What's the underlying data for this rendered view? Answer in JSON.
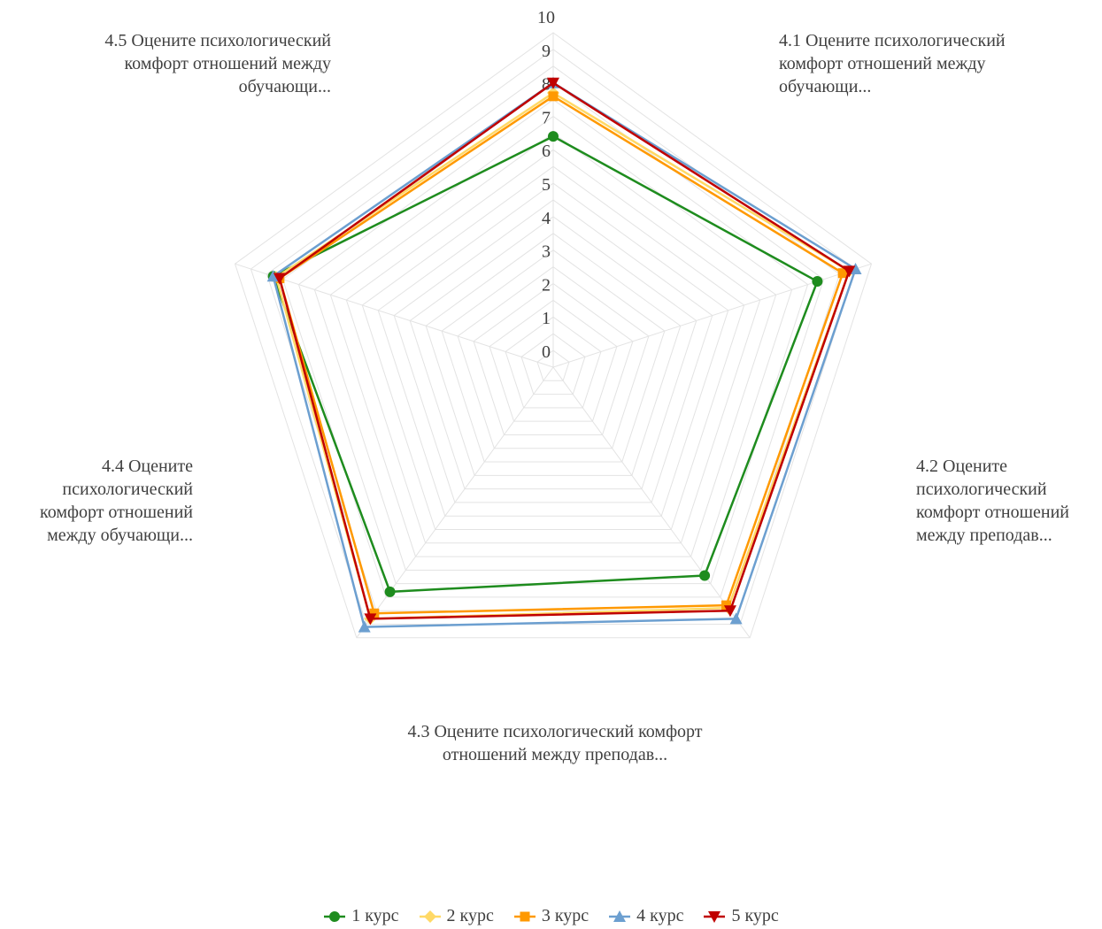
{
  "chart_data": {
    "type": "radar",
    "categories": [
      "4.1 Оцените психологический комфорт отношений между обучающи...",
      "4.2 Оцените психологический комфорт отношений между преподав...",
      "4.3 Оцените психологический комфорт отношений между преподав...",
      "4.4 Оцените психологический комфорт отношений между обучающи...",
      "4.5 Оцените психологический комфорт отношений между обучающи..."
    ],
    "category_lines": [
      [
        "4.1 Оцените психологический",
        "комфорт отношений между",
        "обучающи..."
      ],
      [
        "4.2 Оцените",
        "психологический",
        "комфорт отношений",
        "между преподав..."
      ],
      [
        "4.3 Оцените психологический комфорт",
        "отношений между преподав..."
      ],
      [
        "4.4 Оцените",
        "психологический",
        "комфорт отношений",
        "между обучающи..."
      ],
      [
        "4.5 Оцените психологический",
        "комфорт отношений между",
        "обучающи..."
      ]
    ],
    "rlim": [
      0,
      10
    ],
    "ticks": [
      "0",
      "1",
      "2",
      "3",
      "4",
      "5",
      "6",
      "7",
      "8",
      "9",
      "10"
    ],
    "grid": true,
    "legend_position": "bottom",
    "series": [
      {
        "name": "1 курс",
        "color": "#1e8c1e",
        "marker": "circle",
        "values": [
          6.9,
          8.3,
          7.7,
          8.3,
          8.8
        ]
      },
      {
        "name": "2 курс",
        "color": "#ffd966",
        "marker": "diamond",
        "values": [
          8.2,
          9.3,
          8.9,
          9.3,
          8.7
        ]
      },
      {
        "name": "3 курс",
        "color": "#ff9900",
        "marker": "square",
        "values": [
          8.1,
          9.1,
          8.8,
          9.1,
          8.6
        ]
      },
      {
        "name": "4 курс",
        "color": "#6c9fd0",
        "marker": "triangle-up",
        "values": [
          8.5,
          9.5,
          9.3,
          9.6,
          8.8
        ]
      },
      {
        "name": "5 курс",
        "color": "#c00000",
        "marker": "triangle-down",
        "values": [
          8.5,
          9.3,
          9.0,
          9.3,
          8.6
        ]
      }
    ]
  }
}
